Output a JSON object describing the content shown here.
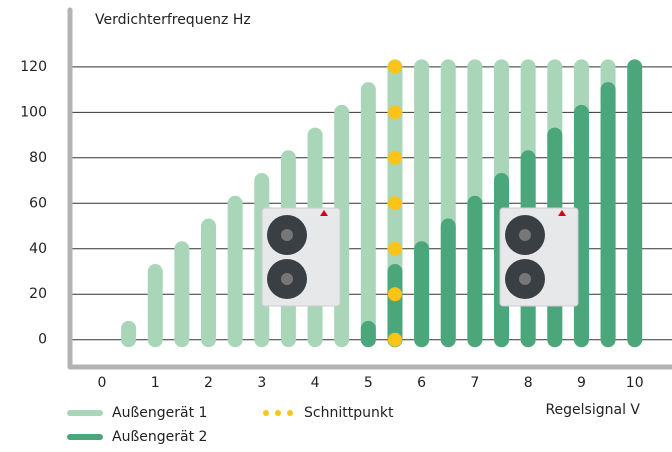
{
  "chart_data": {
    "type": "bar",
    "y_label": "Verdichterfrequenz Hz",
    "x_label": "Regelsignal V",
    "xlim": [
      -0.6,
      10.7
    ],
    "xticks": [
      0,
      1,
      2,
      3,
      4,
      5,
      6,
      7,
      8,
      9,
      10
    ],
    "ylim": [
      -12,
      145
    ],
    "yticks": [
      0,
      20,
      40,
      60,
      80,
      100,
      120
    ],
    "grid": true,
    "series": [
      {
        "name": "Außengerät 1",
        "type": "bar",
        "color": "#a9d6b9",
        "x": [
          0.5,
          1,
          1.5,
          2,
          2.5,
          3,
          3.5,
          4,
          4.5,
          5,
          5.5,
          6,
          6.5,
          7,
          7.5,
          8,
          8.5,
          9,
          9.5
        ],
        "values": [
          5,
          30,
          40,
          50,
          60,
          70,
          80,
          90,
          100,
          110,
          120,
          120,
          120,
          120,
          120,
          120,
          120,
          120,
          120
        ]
      },
      {
        "name": "Außengerät 2",
        "type": "bar",
        "color": "#4ba77b",
        "x": [
          5,
          5.5,
          6,
          6.5,
          7,
          7.5,
          8,
          8.5,
          9,
          9.5,
          10
        ],
        "values": [
          5,
          30,
          40,
          50,
          60,
          70,
          80,
          90,
          100,
          110,
          120
        ]
      },
      {
        "name": "Schnittpunkt",
        "type": "scatter",
        "color": "#fcc419",
        "x": [
          5.5,
          5.5,
          5.5,
          5.5,
          5.5,
          5.5,
          5.5
        ],
        "values": [
          0,
          20,
          40,
          60,
          80,
          100,
          120
        ]
      }
    ]
  }
}
